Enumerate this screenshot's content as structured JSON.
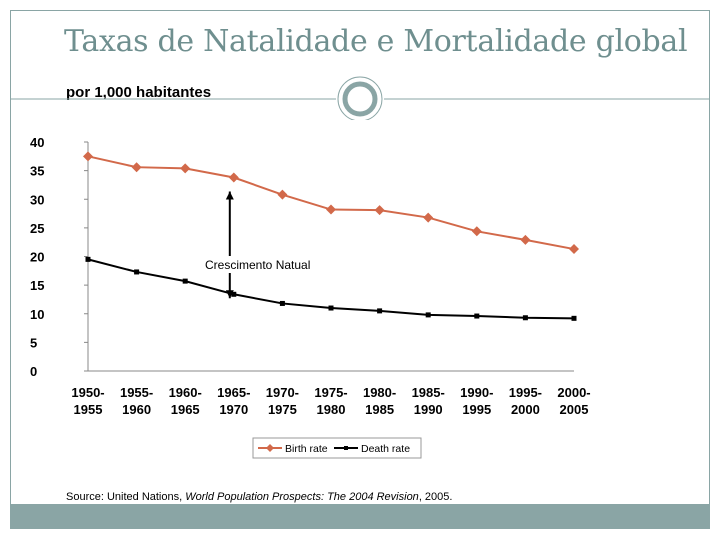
{
  "slide": {
    "title": "Taxas de Natalidade e Mortalidade global",
    "subtitle": "por 1,000 habitantes",
    "source_prefix": "Source: United Nations, ",
    "source_title": "World Population Prospects: The 2004 Revision",
    "source_suffix": ", 2005."
  },
  "colors": {
    "accent": "#8aa5a5",
    "title": "#6f8f8f",
    "birth": "#d2694a",
    "death": "#000000"
  },
  "chart_data": {
    "type": "line",
    "categories": [
      [
        "1950-",
        "1955"
      ],
      [
        "1955-",
        "1960"
      ],
      [
        "1960-",
        "1965"
      ],
      [
        "1965-",
        "1970"
      ],
      [
        "1970-",
        "1975"
      ],
      [
        "1975-",
        "1980"
      ],
      [
        "1980-",
        "1985"
      ],
      [
        "1985-",
        "1990"
      ],
      [
        "1990-",
        "1995"
      ],
      [
        "1995-",
        "2000"
      ],
      [
        "2000-",
        "2005"
      ]
    ],
    "series": [
      {
        "name": "Birth rate",
        "marker": "diamond",
        "values": [
          37.5,
          35.6,
          35.4,
          33.8,
          30.8,
          28.2,
          28.1,
          26.8,
          24.4,
          22.9,
          21.3
        ]
      },
      {
        "name": "Death rate",
        "marker": "square",
        "values": [
          19.5,
          17.3,
          15.7,
          13.4,
          11.8,
          11.0,
          10.5,
          9.8,
          9.6,
          9.3,
          9.2
        ]
      }
    ],
    "ylim": [
      0,
      40
    ],
    "yticks": [
      0,
      5,
      10,
      15,
      20,
      25,
      30,
      35,
      40
    ],
    "annotation": {
      "text": "Crescimento Natual",
      "at_category": 3
    },
    "legend": "bottom"
  }
}
